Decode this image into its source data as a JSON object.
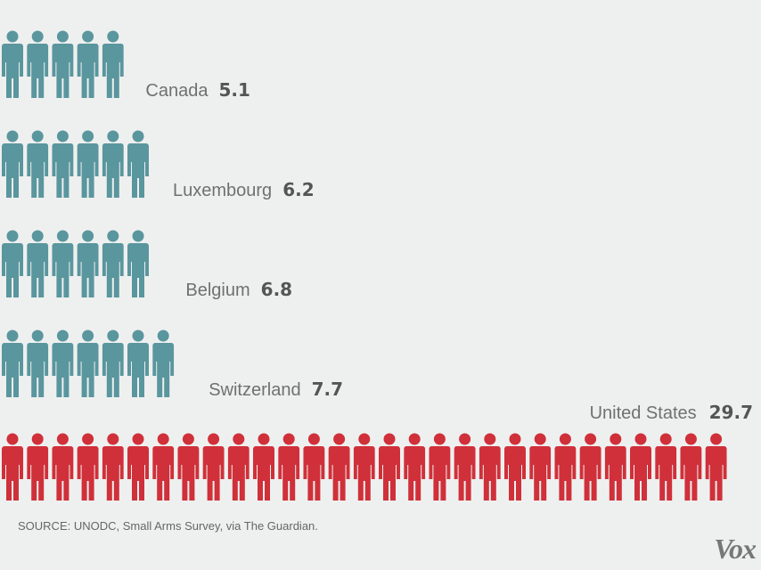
{
  "chart_data": {
    "type": "bar",
    "style": "pictogram",
    "categories": [
      "Canada",
      "Luxembourg",
      "Belgium",
      "Switzerland",
      "United States"
    ],
    "values": [
      5.1,
      6.2,
      6.8,
      7.7,
      29.7
    ],
    "value_labels": [
      "5.1",
      "6.2",
      "6.8",
      "7.7",
      "29.7"
    ],
    "colors": [
      "#5a969e",
      "#5a969e",
      "#5a969e",
      "#5a969e",
      "#d0303a"
    ],
    "title": "",
    "xlabel": "",
    "ylabel": "",
    "unit_per_icon": 1
  },
  "source": "SOURCE: UNODC, Small Arms Survey, via The Guardian.",
  "logo": "Vox"
}
